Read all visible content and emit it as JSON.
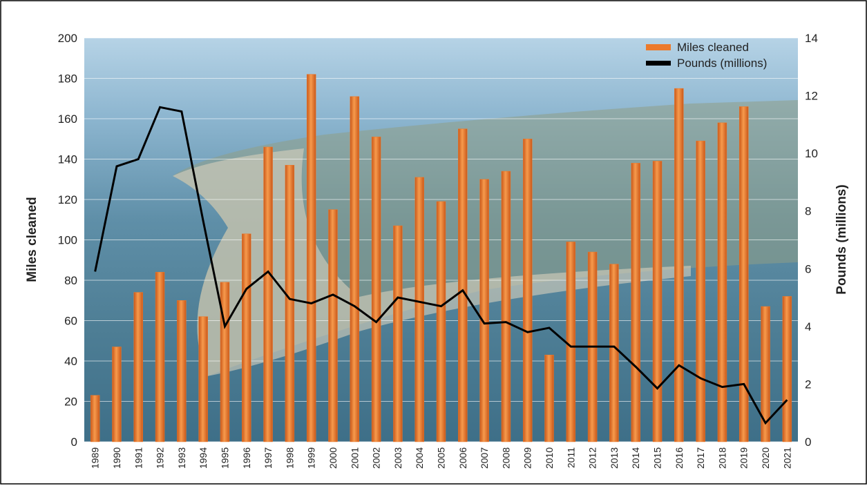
{
  "chart_data": {
    "type": "bar-line",
    "categories": [
      "1989",
      "1990",
      "1991",
      "1992",
      "1993",
      "1994",
      "1995",
      "1996",
      "1997",
      "1998",
      "1999",
      "2000",
      "2001",
      "2002",
      "2003",
      "2004",
      "2005",
      "2006",
      "2007",
      "2008",
      "2009",
      "2010",
      "2011",
      "2012",
      "2013",
      "2014",
      "2015",
      "2016",
      "2017",
      "2018",
      "2019",
      "2020",
      "2021"
    ],
    "series": [
      {
        "name": "Miles cleaned",
        "color": "#ec7a2c",
        "type": "bar",
        "axis": "y",
        "values": [
          23,
          47,
          74,
          84,
          70,
          62,
          79,
          103,
          146,
          137,
          182,
          115,
          171,
          151,
          107,
          131,
          119,
          155,
          130,
          134,
          150,
          43,
          99,
          94,
          88,
          138,
          139,
          175,
          149,
          158,
          166,
          67,
          72
        ]
      },
      {
        "name": "Pounds (millions)",
        "color": "#000000",
        "type": "line",
        "axis": "y2",
        "values": [
          5.9,
          9.55,
          9.8,
          11.6,
          11.45,
          7.65,
          4.0,
          5.3,
          5.9,
          4.95,
          4.8,
          5.1,
          4.7,
          4.15,
          5.0,
          4.85,
          4.7,
          5.25,
          4.1,
          4.15,
          3.8,
          3.95,
          3.3,
          3.3,
          3.3,
          2.6,
          1.85,
          2.65,
          2.2,
          1.9,
          2.0,
          0.65,
          1.45
        ]
      }
    ],
    "y_label": "Miles cleaned",
    "y2_label": "Pounds (millions)",
    "ylim": [
      0,
      200
    ],
    "yticks": [
      0,
      20,
      40,
      60,
      80,
      100,
      120,
      140,
      160,
      180,
      200
    ],
    "y2lim": [
      0,
      14
    ],
    "y2ticks": [
      0,
      2,
      4,
      6,
      8,
      10,
      12,
      14
    ],
    "grid": true,
    "legend": "top-right"
  }
}
